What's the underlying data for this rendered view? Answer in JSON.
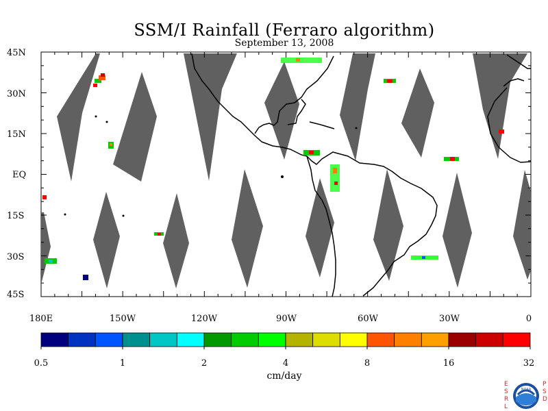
{
  "title": "SSM/I Rainfall (Ferraro algorithm)",
  "subtitle": "September 13, 2008",
  "lat_labels": [
    "45N",
    "30N",
    "15N",
    "EQ",
    "15S",
    "30S",
    "45S"
  ],
  "lon_labels": [
    "180E",
    "150W",
    "120W",
    "90W",
    "60W",
    "30W",
    "0"
  ],
  "colorbar": {
    "units": "cm/day",
    "tick_labels": [
      "0.5",
      "1",
      "2",
      "4",
      "8",
      "16",
      "32"
    ],
    "colors": [
      "#00007f",
      "#0033bf",
      "#0055ff",
      "#008f8f",
      "#00c6c6",
      "#00ffff",
      "#009900",
      "#00cc00",
      "#00ff00",
      "#b3b300",
      "#dddd00",
      "#ffff00",
      "#ff5500",
      "#ff7f00",
      "#ffa000",
      "#990000",
      "#cc0000",
      "#ff0000"
    ]
  },
  "logo": {
    "left_letters": "ESRL",
    "right_letters": "PSD",
    "badge_text": "NOAA"
  }
}
